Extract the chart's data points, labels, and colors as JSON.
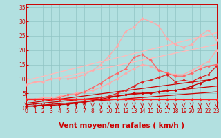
{
  "title": "",
  "xlabel": "Vent moyen/en rafales ( km/h )",
  "ylabel": "",
  "bg_color": "#b2e0e0",
  "grid_color": "#90c4c4",
  "x_ticks": [
    0,
    1,
    2,
    3,
    4,
    5,
    6,
    7,
    8,
    9,
    10,
    11,
    12,
    13,
    14,
    15,
    16,
    17,
    18,
    19,
    20,
    21,
    22,
    23
  ],
  "y_ticks": [
    0,
    5,
    10,
    15,
    20,
    25,
    30,
    35
  ],
  "xlim": [
    0,
    23
  ],
  "ylim": [
    0,
    36
  ],
  "lines": [
    {
      "x": [
        0,
        23
      ],
      "y": [
        0.5,
        5.5
      ],
      "color": "#cc0000",
      "lw": 0.9,
      "marker": null,
      "ms": 0,
      "zorder": 3
    },
    {
      "x": [
        0,
        23
      ],
      "y": [
        1.0,
        7.5
      ],
      "color": "#cc0000",
      "lw": 0.9,
      "marker": null,
      "ms": 0,
      "zorder": 3
    },
    {
      "x": [
        0,
        23
      ],
      "y": [
        1.5,
        10.0
      ],
      "color": "#cc0000",
      "lw": 0.9,
      "marker": null,
      "ms": 0,
      "zorder": 3
    },
    {
      "x": [
        0,
        23
      ],
      "y": [
        8.0,
        22.0
      ],
      "color": "#ffbbbb",
      "lw": 1.0,
      "marker": null,
      "ms": 0,
      "zorder": 2
    },
    {
      "x": [
        0,
        23
      ],
      "y": [
        9.5,
        26.0
      ],
      "color": "#ffbbbb",
      "lw": 1.0,
      "marker": null,
      "ms": 0,
      "zorder": 2
    },
    {
      "x": [
        0,
        1,
        2,
        3,
        4,
        5,
        6,
        7,
        8,
        9,
        10,
        11,
        12,
        13,
        14,
        15,
        16,
        17,
        18,
        19,
        20,
        21,
        22,
        23
      ],
      "y": [
        3.0,
        3.0,
        3.5,
        3.5,
        4.0,
        4.5,
        5.0,
        5.5,
        6.0,
        7.0,
        8.5,
        10.0,
        12.0,
        13.5,
        15.0,
        14.5,
        13.0,
        12.0,
        11.5,
        11.5,
        13.0,
        14.5,
        16.0,
        20.0
      ],
      "color": "#ffaaaa",
      "lw": 0.9,
      "marker": "D",
      "ms": 2.0,
      "zorder": 4
    },
    {
      "x": [
        0,
        1,
        2,
        3,
        4,
        5,
        6,
        7,
        8,
        9,
        10,
        11,
        12,
        13,
        14,
        15,
        16,
        17,
        18,
        19,
        20,
        21,
        22,
        23
      ],
      "y": [
        8.0,
        9.0,
        9.0,
        10.0,
        10.0,
        10.0,
        10.5,
        11.5,
        13.0,
        15.0,
        18.0,
        21.5,
        26.5,
        28.0,
        31.0,
        30.0,
        28.5,
        24.0,
        22.0,
        21.0,
        22.0,
        25.0,
        27.0,
        23.5
      ],
      "color": "#ffaaaa",
      "lw": 0.9,
      "marker": "D",
      "ms": 2.0,
      "zorder": 4
    },
    {
      "x": [
        0,
        1,
        2,
        3,
        4,
        5,
        6,
        7,
        8,
        9,
        10,
        11,
        12,
        13,
        14,
        15,
        16,
        17,
        18,
        19,
        20,
        21,
        22,
        23
      ],
      "y": [
        3.0,
        3.0,
        3.0,
        3.0,
        3.5,
        4.5,
        4.5,
        5.5,
        7.0,
        8.5,
        10.5,
        12.0,
        13.5,
        17.5,
        18.5,
        16.5,
        13.0,
        12.0,
        11.0,
        11.0,
        12.0,
        13.5,
        14.5,
        15.0
      ],
      "color": "#ff6666",
      "lw": 0.9,
      "marker": "D",
      "ms": 2.0,
      "zorder": 5
    },
    {
      "x": [
        0,
        1,
        2,
        3,
        4,
        5,
        6,
        7,
        8,
        9,
        10,
        11,
        12,
        13,
        14,
        15,
        16,
        17,
        18,
        19,
        20,
        21,
        22,
        23
      ],
      "y": [
        3.0,
        3.0,
        3.0,
        3.0,
        3.0,
        3.0,
        3.0,
        3.0,
        3.0,
        3.5,
        4.0,
        5.0,
        6.0,
        7.5,
        9.0,
        9.5,
        10.5,
        11.5,
        9.0,
        9.5,
        9.0,
        10.5,
        11.5,
        14.5
      ],
      "color": "#dd2222",
      "lw": 0.9,
      "marker": "D",
      "ms": 2.0,
      "zorder": 5
    },
    {
      "x": [
        0,
        1,
        2,
        3,
        4,
        5,
        6,
        7,
        8,
        9,
        10,
        11,
        12,
        13,
        14,
        15,
        16,
        17,
        18,
        19,
        20,
        21,
        22,
        23
      ],
      "y": [
        3.0,
        3.0,
        3.0,
        3.0,
        3.0,
        3.0,
        3.0,
        3.0,
        3.0,
        3.0,
        3.0,
        3.0,
        3.0,
        3.0,
        3.0,
        3.0,
        3.0,
        3.0,
        3.0,
        3.0,
        3.0,
        3.0,
        3.0,
        3.0
      ],
      "color": "#ff2222",
      "lw": 0.9,
      "marker": "D",
      "ms": 2.0,
      "zorder": 5
    },
    {
      "x": [
        0,
        1,
        2,
        3,
        4,
        5,
        6,
        7,
        8,
        9,
        10,
        11,
        12,
        13,
        14,
        15,
        16,
        17,
        18,
        19,
        20,
        21,
        22,
        23
      ],
      "y": [
        0.5,
        0.5,
        0.8,
        0.8,
        1.0,
        1.2,
        1.5,
        1.8,
        2.5,
        3.0,
        3.5,
        4.0,
        4.5,
        5.0,
        5.0,
        5.0,
        5.5,
        6.0,
        6.0,
        6.5,
        7.5,
        8.5,
        9.5,
        10.5
      ],
      "color": "#cc0000",
      "lw": 0.9,
      "marker": "D",
      "ms": 2.0,
      "zorder": 5
    }
  ],
  "tick_color": "#cc0000",
  "label_color": "#cc0000",
  "xlabel_color": "#cc0000",
  "tick_fontsize": 5.5,
  "xlabel_fontsize": 7.5
}
